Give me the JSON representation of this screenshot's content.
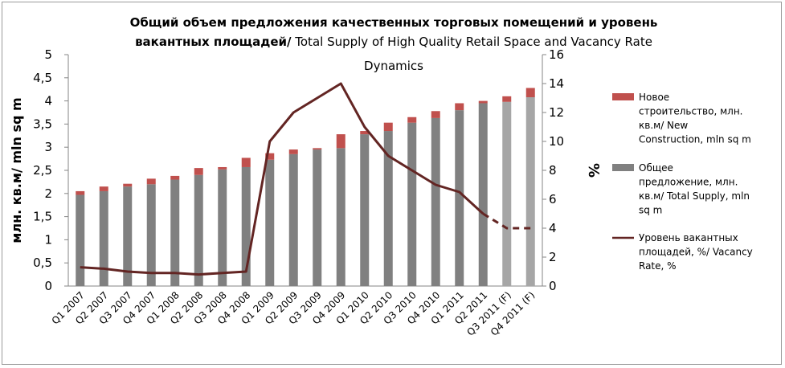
{
  "chart_data": {
    "type": "bar",
    "title_line1": "Общий объем предложения  качественных торговых помещений и уровень",
    "title_line2_bold": "вакантных площадей/",
    "title_line2_regular": " Total Supply of High Quality Retail Space and Vacancy Rate",
    "title_line3": "Dynamics",
    "ylabel": "млн. кв.м/ mln sq m",
    "y2label": "%",
    "ylim": [
      0,
      5
    ],
    "y2lim": [
      0,
      16
    ],
    "y_ticks": [
      "0",
      "0,5",
      "1",
      "1,5",
      "2",
      "2,5",
      "3",
      "3,5",
      "4",
      "4,5",
      "5"
    ],
    "y2_ticks": [
      "0",
      "2",
      "4",
      "6",
      "8",
      "10",
      "12",
      "14",
      "16"
    ],
    "categories": [
      "Q1 2007",
      "Q2 2007",
      "Q3 2007",
      "Q4 2007",
      "Q1 2008",
      "Q2 2008",
      "Q3 2008",
      "Q4 2008",
      "Q1 2009",
      "Q2 2009",
      "Q3 2009",
      "Q4 2009",
      "Q1 2010",
      "Q2 2010",
      "Q3 2010",
      "Q4 2010",
      "Q1 2011",
      "Q2 2011",
      "Q3 2011 (F)",
      "Q4 2011 (F)"
    ],
    "series": [
      {
        "name": "Общее предложение, млн. кв.м/ Total Supply, mln sq m",
        "color": "#808080",
        "forecast_color": "#a6a6a6",
        "values": [
          1.97,
          2.05,
          2.15,
          2.2,
          2.3,
          2.4,
          2.52,
          2.57,
          2.73,
          2.85,
          2.95,
          2.98,
          3.28,
          3.35,
          3.53,
          3.63,
          3.8,
          3.95,
          3.98,
          4.08
        ]
      },
      {
        "name": "Новое строительство,  млн. кв.м/ New Construction, mln sq m",
        "color": "#c0504d",
        "values": [
          0.08,
          0.1,
          0.06,
          0.12,
          0.08,
          0.15,
          0.05,
          0.2,
          0.14,
          0.1,
          0.03,
          0.3,
          0.07,
          0.18,
          0.12,
          0.15,
          0.15,
          0.05,
          0.12,
          0.2
        ]
      },
      {
        "name": "Уровень вакантных площадей, %/ Vacancy Rate, %",
        "color": "#632523",
        "axis": "secondary",
        "values": [
          1.3,
          1.2,
          1.0,
          0.9,
          0.9,
          0.8,
          0.9,
          1.0,
          10.0,
          12.0,
          13.0,
          14.0,
          11.0,
          9.0,
          8.0,
          7.0,
          6.5,
          5.0,
          4.0,
          4.0
        ],
        "dashed_from_index": 17
      }
    ],
    "legend": [
      {
        "label": "Новое строительство,  млн. кв.м/ New Construction, mln sq m",
        "lines": [
          "Новое",
          "строительство,  млн.",
          "кв.м/ New",
          "Construction, mln sq m"
        ]
      },
      {
        "label": "Общее предложение, млн. кв.м/ Total Supply, mln sq m",
        "lines": [
          "Общее",
          "предложение, млн.",
          "кв.м/ Total Supply, mln",
          "sq m"
        ]
      },
      {
        "label": "Уровень вакантных площадей, %/ Vacancy Rate, %",
        "lines": [
          "Уровень вакантных",
          "площадей, %/ Vacancy",
          "Rate, %"
        ]
      }
    ],
    "legend_position": "right",
    "grid": false
  }
}
